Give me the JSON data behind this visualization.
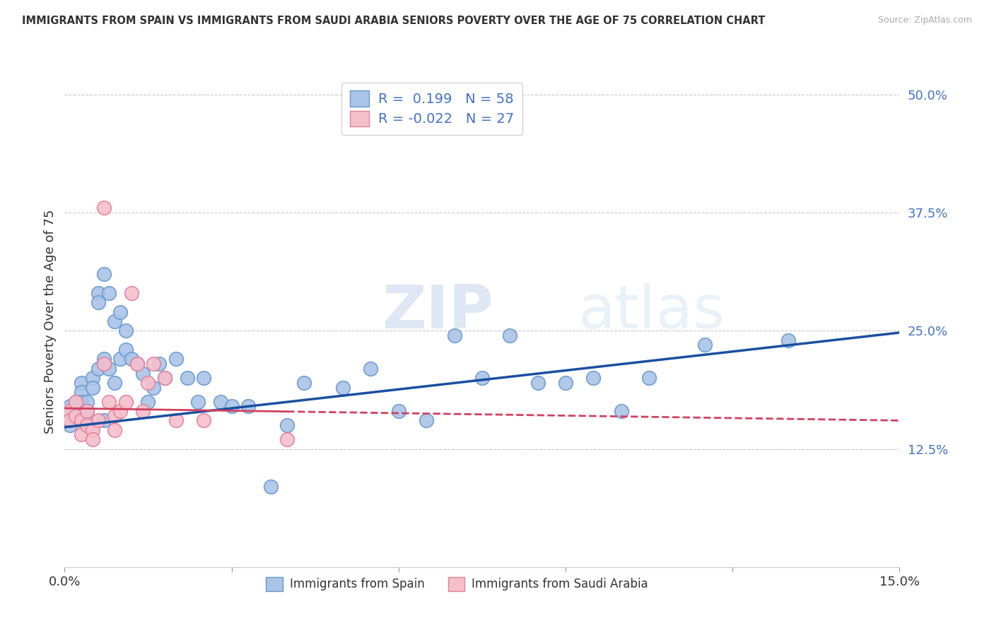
{
  "title": "IMMIGRANTS FROM SPAIN VS IMMIGRANTS FROM SAUDI ARABIA SENIORS POVERTY OVER THE AGE OF 75 CORRELATION CHART",
  "source": "Source: ZipAtlas.com",
  "ylabel": "Seniors Poverty Over the Age of 75",
  "xlim": [
    0.0,
    0.15
  ],
  "ylim": [
    0.0,
    0.52
  ],
  "yticks": [
    0.125,
    0.25,
    0.375,
    0.5
  ],
  "ytick_labels": [
    "12.5%",
    "25.0%",
    "37.5%",
    "50.0%"
  ],
  "background_color": "#ffffff",
  "grid_color": "#c8c8c8",
  "watermark_zip": "ZIP",
  "watermark_atlas": "atlas",
  "legend_R_spain": " 0.199",
  "legend_N_spain": "58",
  "legend_R_saudi": "-0.022",
  "legend_N_saudi": "27",
  "spain_color": "#aac4e8",
  "saudi_color": "#f5bfcc",
  "spain_edge": "#6699cc",
  "saudi_edge": "#e0809a",
  "trend_spain_color": "#1a4fa0",
  "trend_saudi_color": "#d04060",
  "spain_x": [
    0.001,
    0.001,
    0.001,
    0.002,
    0.002,
    0.003,
    0.003,
    0.003,
    0.004,
    0.004,
    0.004,
    0.005,
    0.005,
    0.006,
    0.006,
    0.006,
    0.007,
    0.007,
    0.007,
    0.008,
    0.008,
    0.009,
    0.009,
    0.01,
    0.01,
    0.011,
    0.011,
    0.012,
    0.013,
    0.014,
    0.015,
    0.016,
    0.017,
    0.018,
    0.02,
    0.022,
    0.024,
    0.025,
    0.028,
    0.03,
    0.033,
    0.037,
    0.04,
    0.043,
    0.05,
    0.055,
    0.06,
    0.065,
    0.07,
    0.075,
    0.08,
    0.085,
    0.09,
    0.095,
    0.1,
    0.105,
    0.115,
    0.13
  ],
  "spain_y": [
    0.17,
    0.16,
    0.15,
    0.175,
    0.165,
    0.195,
    0.185,
    0.175,
    0.175,
    0.165,
    0.155,
    0.2,
    0.19,
    0.29,
    0.28,
    0.21,
    0.31,
    0.22,
    0.155,
    0.29,
    0.21,
    0.26,
    0.195,
    0.27,
    0.22,
    0.25,
    0.23,
    0.22,
    0.215,
    0.205,
    0.175,
    0.19,
    0.215,
    0.2,
    0.22,
    0.2,
    0.175,
    0.2,
    0.175,
    0.17,
    0.17,
    0.085,
    0.15,
    0.195,
    0.19,
    0.21,
    0.165,
    0.155,
    0.245,
    0.2,
    0.245,
    0.195,
    0.195,
    0.2,
    0.165,
    0.2,
    0.235,
    0.24
  ],
  "saudi_x": [
    0.001,
    0.001,
    0.002,
    0.002,
    0.003,
    0.003,
    0.004,
    0.004,
    0.005,
    0.005,
    0.006,
    0.007,
    0.007,
    0.008,
    0.009,
    0.009,
    0.01,
    0.011,
    0.012,
    0.013,
    0.014,
    0.015,
    0.016,
    0.018,
    0.02,
    0.025,
    0.04
  ],
  "saudi_y": [
    0.165,
    0.155,
    0.175,
    0.16,
    0.155,
    0.14,
    0.165,
    0.15,
    0.145,
    0.135,
    0.155,
    0.38,
    0.215,
    0.175,
    0.16,
    0.145,
    0.165,
    0.175,
    0.29,
    0.215,
    0.165,
    0.195,
    0.215,
    0.2,
    0.155,
    0.155,
    0.135
  ],
  "trend_spain_x0": 0.0,
  "trend_spain_y0": 0.148,
  "trend_spain_x1": 0.15,
  "trend_spain_y1": 0.248,
  "trend_saudi_x0": 0.0,
  "trend_saudi_y0": 0.168,
  "trend_saudi_x1": 0.15,
  "trend_saudi_y1": 0.155,
  "trend_saudi_solid_end": 0.04
}
